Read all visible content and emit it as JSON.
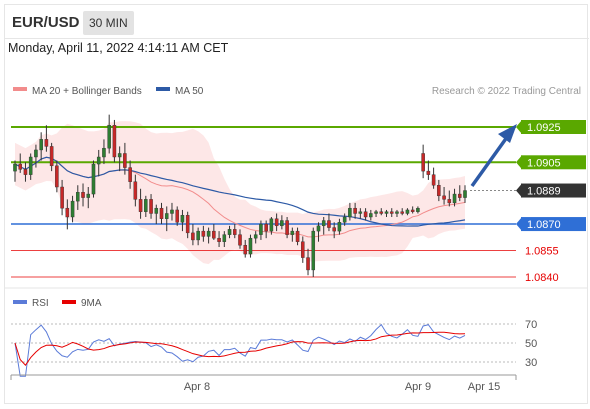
{
  "header": {
    "symbol": "EUR/USD",
    "timeframe": "30 MIN",
    "datetime": "Monday, April 11, 2022 4:14:11 AM CET"
  },
  "main_legend": [
    {
      "label": "MA 20 + Bollinger Bands",
      "color": "#f28c8c"
    },
    {
      "label": "MA 50",
      "color": "#2d5aa6"
    }
  ],
  "rsi_legend": [
    {
      "label": "RSI",
      "color": "#5b7bd8"
    },
    {
      "label": "9MA",
      "color": "#e60000"
    }
  ],
  "research_credit": "Research © 2022 Trading Central",
  "chart_data": {
    "type": "candlestick",
    "instrument": "EUR/USD",
    "timeframe": "30 MIN",
    "price_range": [
      1.0838,
      1.0935
    ],
    "levels": [
      {
        "price": "1.0925",
        "kind": "resistance",
        "color": "#5aa800",
        "tag": "green"
      },
      {
        "price": "1.0905",
        "kind": "resistance",
        "color": "#5aa800",
        "tag": "green"
      },
      {
        "price": "1.0889",
        "kind": "current",
        "color": "#333333",
        "tag": "dark"
      },
      {
        "price": "1.0870",
        "kind": "pivot",
        "color": "#2f6fd6",
        "tag": "blue"
      },
      {
        "price": "1.0855",
        "kind": "support",
        "color": "#e60000",
        "tag": "text"
      },
      {
        "price": "1.0840",
        "kind": "support",
        "color": "#e60000",
        "tag": "text"
      }
    ],
    "x_labels": [
      "Apr 8",
      "Apr 9",
      "Apr 15"
    ],
    "candles": [
      [
        1.09,
        1.0906,
        1.0894,
        1.0904
      ],
      [
        1.0904,
        1.091,
        1.0899,
        1.0901
      ],
      [
        1.0901,
        1.0905,
        1.0894,
        1.0898
      ],
      [
        1.0898,
        1.091,
        1.0895,
        1.0908
      ],
      [
        1.0908,
        1.0915,
        1.0902,
        1.0912
      ],
      [
        1.0912,
        1.0922,
        1.0906,
        1.0918
      ],
      [
        1.0918,
        1.0926,
        1.0911,
        1.0914
      ],
      [
        1.0914,
        1.0916,
        1.09,
        1.0903
      ],
      [
        1.0903,
        1.0906,
        1.0888,
        1.0891
      ],
      [
        1.0891,
        1.0895,
        1.0875,
        1.0879
      ],
      [
        1.0879,
        1.0884,
        1.0867,
        1.0874
      ],
      [
        1.0874,
        1.0886,
        1.0871,
        1.0883
      ],
      [
        1.0883,
        1.0892,
        1.0878,
        1.0888
      ],
      [
        1.0888,
        1.0893,
        1.088,
        1.0885
      ],
      [
        1.0885,
        1.0891,
        1.0879,
        1.0887
      ],
      [
        1.0887,
        1.0906,
        1.0885,
        1.0904
      ],
      [
        1.0904,
        1.0912,
        1.0897,
        1.0908
      ],
      [
        1.0908,
        1.0918,
        1.0904,
        1.0913
      ],
      [
        1.0913,
        1.0932,
        1.091,
        1.0926
      ],
      [
        1.0926,
        1.0929,
        1.0905,
        1.0908
      ],
      [
        1.0908,
        1.0914,
        1.09,
        1.091
      ],
      [
        1.091,
        1.0916,
        1.0898,
        1.0902
      ],
      [
        1.0902,
        1.0906,
        1.089,
        1.0894
      ],
      [
        1.0894,
        1.0898,
        1.088,
        1.0884
      ],
      [
        1.0884,
        1.089,
        1.0873,
        1.0877
      ],
      [
        1.0877,
        1.0886,
        1.0874,
        1.0884
      ],
      [
        1.0884,
        1.0887,
        1.0873,
        1.0876
      ],
      [
        1.0876,
        1.0881,
        1.087,
        1.0879
      ],
      [
        1.0879,
        1.0882,
        1.087,
        1.0873
      ],
      [
        1.0873,
        1.088,
        1.0866,
        1.0876
      ],
      [
        1.0876,
        1.0882,
        1.0872,
        1.0878
      ],
      [
        1.0878,
        1.088,
        1.0869,
        1.0871
      ],
      [
        1.0871,
        1.0878,
        1.0866,
        1.0875
      ],
      [
        1.0875,
        1.0877,
        1.0862,
        1.0865
      ],
      [
        1.0865,
        1.087,
        1.0858,
        1.0861
      ],
      [
        1.0861,
        1.0868,
        1.0858,
        1.0866
      ],
      [
        1.0866,
        1.0869,
        1.086,
        1.0863
      ],
      [
        1.0863,
        1.0868,
        1.0859,
        1.0866
      ],
      [
        1.0866,
        1.087,
        1.0861,
        1.0862
      ],
      [
        1.0862,
        1.0866,
        1.0857,
        1.086
      ],
      [
        1.086,
        1.0866,
        1.0857,
        1.0864
      ],
      [
        1.0864,
        1.0869,
        1.0862,
        1.0867
      ],
      [
        1.0867,
        1.087,
        1.0862,
        1.0864
      ],
      [
        1.0864,
        1.0867,
        1.0856,
        1.0858
      ],
      [
        1.0858,
        1.0861,
        1.0851,
        1.0853
      ],
      [
        1.0853,
        1.0864,
        1.0851,
        1.0862
      ],
      [
        1.0862,
        1.0866,
        1.0859,
        1.0864
      ],
      [
        1.0864,
        1.0872,
        1.0861,
        1.087
      ],
      [
        1.087,
        1.0872,
        1.0862,
        1.0866
      ],
      [
        1.0866,
        1.0874,
        1.0864,
        1.0873
      ],
      [
        1.0873,
        1.0876,
        1.0866,
        1.0869
      ],
      [
        1.0869,
        1.0875,
        1.0867,
        1.0872
      ],
      [
        1.0872,
        1.0874,
        1.0862,
        1.0864
      ],
      [
        1.0864,
        1.0868,
        1.086,
        1.0866
      ],
      [
        1.0866,
        1.0868,
        1.0858,
        1.086
      ],
      [
        1.086,
        1.0863,
        1.0848,
        1.0851
      ],
      [
        1.0851,
        1.0856,
        1.0841,
        1.0844
      ],
      [
        1.0844,
        1.0868,
        1.084,
        1.0866
      ],
      [
        1.0866,
        1.0871,
        1.086,
        1.0869
      ],
      [
        1.0869,
        1.0874,
        1.0864,
        1.0872
      ],
      [
        1.0872,
        1.0876,
        1.0866,
        1.0868
      ],
      [
        1.0868,
        1.0871,
        1.0862,
        1.0866
      ],
      [
        1.0866,
        1.0873,
        1.0864,
        1.0871
      ],
      [
        1.0871,
        1.0876,
        1.0869,
        1.0874
      ],
      [
        1.0874,
        1.0882,
        1.0872,
        1.0879
      ],
      [
        1.0879,
        1.0882,
        1.0873,
        1.0876
      ],
      [
        1.0876,
        1.0879,
        1.0873,
        1.0877
      ],
      [
        1.0877,
        1.0879,
        1.0872,
        1.0874
      ],
      [
        1.0874,
        1.0878,
        1.0872,
        1.0876
      ],
      [
        1.0876,
        1.0878,
        1.0874,
        1.0877
      ],
      [
        1.0877,
        1.0879,
        1.0875,
        1.0876
      ],
      [
        1.0876,
        1.0878,
        1.0874,
        1.0877
      ],
      [
        1.0877,
        1.0879,
        1.0874,
        1.0876
      ],
      [
        1.0876,
        1.0878,
        1.0874,
        1.0877
      ],
      [
        1.0877,
        1.0879,
        1.0875,
        1.0876
      ],
      [
        1.0876,
        1.0879,
        1.0875,
        1.0878
      ],
      [
        1.0878,
        1.088,
        1.0876,
        1.0877
      ],
      [
        1.0877,
        1.088,
        1.0876,
        1.0879
      ],
      [
        1.091,
        1.0915,
        1.0896,
        1.09
      ],
      [
        1.09,
        1.0906,
        1.0895,
        1.0898
      ],
      [
        1.0898,
        1.0902,
        1.089,
        1.0892
      ],
      [
        1.0892,
        1.0895,
        1.0883,
        1.0886
      ],
      [
        1.0886,
        1.0891,
        1.0881,
        1.0884
      ],
      [
        1.0884,
        1.0889,
        1.088,
        1.0882
      ],
      [
        1.0882,
        1.089,
        1.088,
        1.0887
      ],
      [
        1.0887,
        1.0892,
        1.0883,
        1.0885
      ],
      [
        1.0885,
        1.0892,
        1.0882,
        1.0889
      ]
    ],
    "rsi_axis": {
      "ticks": [
        "70",
        "50",
        "30"
      ]
    }
  }
}
